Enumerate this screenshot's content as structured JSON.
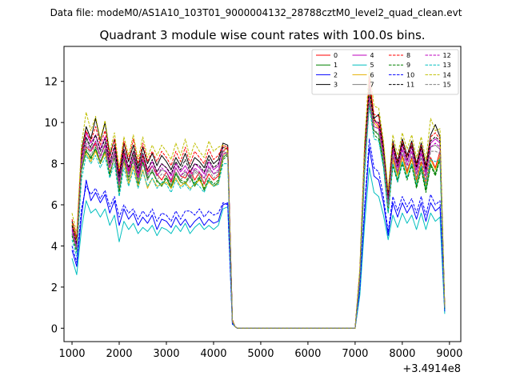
{
  "suptitle": "Data file: modeM0/AS1A10_103T01_9000004132_28788cztM0_level2_quad_clean.evt",
  "chart_data": {
    "type": "line",
    "title": "Quadrant 3 module wise count rates with 100.0s bins.",
    "xlabel": "",
    "ylabel": "",
    "x_offset_label": "+3.4914e8",
    "xlim": [
      830,
      9240
    ],
    "ylim": [
      -0.65,
      13.7
    ],
    "xticks": [
      1000,
      2000,
      3000,
      4000,
      5000,
      6000,
      7000,
      8000,
      9000
    ],
    "yticks": [
      0,
      2,
      4,
      6,
      8,
      10,
      12
    ],
    "grid": false,
    "legend": {
      "placement": "top-right",
      "columns": 4
    },
    "x": [
      1000,
      1100,
      1200,
      1300,
      1400,
      1500,
      1600,
      1700,
      1800,
      1900,
      2000,
      2100,
      2200,
      2300,
      2400,
      2500,
      2600,
      2700,
      2800,
      2900,
      3000,
      3100,
      3200,
      3300,
      3400,
      3500,
      3600,
      3700,
      3800,
      3900,
      4000,
      4100,
      4200,
      4300,
      4400,
      4450,
      4500,
      4600,
      5000,
      6000,
      7000,
      7100,
      7200,
      7300,
      7400,
      7500,
      7600,
      7700,
      7800,
      7900,
      8000,
      8100,
      8200,
      8300,
      8400,
      8500,
      8600,
      8700,
      8800,
      8900
    ],
    "series": [
      {
        "name": "0",
        "color": "#ff0000",
        "dash": false,
        "values": [
          5.0,
          4.0,
          8.0,
          8.8,
          8.6,
          9.0,
          8.4,
          8.9,
          7.8,
          8.6,
          7.0,
          8.5,
          7.6,
          8.6,
          7.4,
          8.4,
          7.6,
          7.9,
          7.5,
          7.2,
          7.6,
          7.1,
          7.8,
          7.4,
          7.3,
          7.7,
          7.2,
          7.6,
          7.0,
          7.5,
          7.2,
          7.4,
          8.6,
          8.8,
          0.3,
          0.1,
          0.0,
          0.0,
          0.0,
          0.0,
          0.0,
          2.5,
          8.0,
          12.3,
          10.2,
          9.8,
          8.4,
          6.0,
          8.3,
          7.5,
          8.4,
          7.6,
          8.3,
          7.2,
          8.1,
          7.0,
          8.3,
          7.8,
          8.6,
          1.0
        ]
      },
      {
        "name": "1",
        "color": "#008000",
        "dash": false,
        "values": [
          4.6,
          3.8,
          7.7,
          8.6,
          8.3,
          8.7,
          8.1,
          8.6,
          7.5,
          8.3,
          6.7,
          8.2,
          7.3,
          8.3,
          7.1,
          8.1,
          7.3,
          7.6,
          7.2,
          6.9,
          7.3,
          6.8,
          7.5,
          7.1,
          7.0,
          7.4,
          6.9,
          7.3,
          6.7,
          7.2,
          6.9,
          7.1,
          8.3,
          8.5,
          0.3,
          0.1,
          0.0,
          0.0,
          0.0,
          0.0,
          0.0,
          2.4,
          7.7,
          11.2,
          9.6,
          9.4,
          8.1,
          5.7,
          8.0,
          7.2,
          8.1,
          7.3,
          8.0,
          6.9,
          7.8,
          6.7,
          8.0,
          7.5,
          8.3,
          0.9
        ]
      },
      {
        "name": "2",
        "color": "#0000ff",
        "dash": false,
        "values": [
          3.8,
          3.0,
          5.4,
          7.2,
          6.2,
          6.6,
          6.1,
          6.5,
          5.6,
          6.2,
          5.0,
          5.8,
          5.3,
          5.6,
          5.0,
          5.4,
          5.1,
          5.5,
          4.8,
          5.3,
          5.2,
          4.9,
          5.4,
          5.0,
          5.3,
          4.9,
          5.2,
          5.4,
          5.0,
          5.3,
          5.1,
          5.2,
          6.0,
          6.1,
          0.2,
          0.1,
          0.0,
          0.0,
          0.0,
          0.0,
          0.0,
          1.8,
          5.6,
          8.8,
          7.4,
          7.2,
          6.1,
          4.5,
          6.1,
          5.4,
          6.1,
          5.6,
          6.0,
          5.3,
          6.1,
          5.2,
          6.1,
          5.7,
          5.9,
          0.8
        ]
      },
      {
        "name": "3",
        "color": "#000000",
        "dash": false,
        "values": [
          5.2,
          4.3,
          8.6,
          9.8,
          9.2,
          10.2,
          9.1,
          10.0,
          8.4,
          9.2,
          7.4,
          9.0,
          8.1,
          8.9,
          7.8,
          8.8,
          8.0,
          8.5,
          7.9,
          8.4,
          8.1,
          7.7,
          8.3,
          7.9,
          8.5,
          7.8,
          8.3,
          8.1,
          7.8,
          8.4,
          8.0,
          8.2,
          9.0,
          8.9,
          0.4,
          0.1,
          0.0,
          0.0,
          0.0,
          0.0,
          0.0,
          2.8,
          8.8,
          11.8,
          10.2,
          10.4,
          8.9,
          6.5,
          9.1,
          8.1,
          9.2,
          8.4,
          9.1,
          8.0,
          9.0,
          7.9,
          9.4,
          9.9,
          9.3,
          1.0
        ]
      },
      {
        "name": "4",
        "color": "#bf00bf",
        "dash": false,
        "values": [
          4.9,
          4.0,
          8.2,
          9.5,
          9.0,
          9.4,
          8.7,
          9.3,
          8.1,
          8.8,
          7.2,
          8.7,
          7.7,
          8.6,
          7.5,
          8.5,
          7.7,
          8.1,
          7.6,
          8.0,
          7.8,
          7.4,
          8.0,
          7.6,
          7.9,
          7.5,
          8.0,
          7.8,
          7.5,
          8.1,
          7.7,
          7.9,
          8.8,
          8.7,
          0.4,
          0.1,
          0.0,
          0.0,
          0.0,
          0.0,
          0.0,
          2.6,
          8.4,
          11.5,
          10.0,
          10.0,
          8.6,
          6.2,
          8.8,
          7.8,
          8.9,
          8.1,
          8.8,
          7.7,
          8.7,
          7.6,
          9.0,
          9.2,
          9.0,
          1.0
        ]
      },
      {
        "name": "5",
        "color": "#00bfbf",
        "dash": false,
        "values": [
          3.4,
          2.6,
          4.8,
          6.2,
          5.6,
          5.8,
          5.4,
          5.8,
          5.0,
          5.5,
          4.2,
          5.2,
          4.8,
          5.1,
          4.6,
          4.9,
          4.7,
          5.0,
          4.5,
          4.9,
          4.8,
          4.6,
          5.0,
          4.7,
          5.1,
          4.6,
          4.9,
          5.1,
          4.8,
          5.0,
          4.8,
          5.0,
          5.8,
          5.9,
          0.2,
          0.1,
          0.0,
          0.0,
          0.0,
          0.0,
          0.0,
          1.6,
          5.0,
          7.8,
          6.6,
          6.4,
          5.5,
          4.3,
          5.5,
          4.9,
          5.6,
          5.1,
          5.5,
          4.8,
          5.6,
          4.8,
          5.6,
          5.2,
          5.4,
          0.7
        ]
      },
      {
        "name": "6",
        "color": "#e6b000",
        "dash": false,
        "values": [
          5.1,
          4.2,
          8.0,
          8.5,
          8.1,
          8.6,
          8.0,
          8.5,
          7.6,
          8.3,
          6.9,
          8.1,
          7.0,
          7.9,
          6.9,
          7.7,
          6.8,
          7.3,
          6.9,
          7.0,
          7.1,
          6.8,
          7.3,
          6.9,
          7.1,
          6.8,
          7.0,
          7.2,
          6.8,
          7.1,
          6.9,
          7.0,
          8.4,
          8.6,
          0.3,
          0.1,
          0.0,
          0.0,
          0.0,
          0.0,
          0.0,
          2.5,
          7.9,
          11.6,
          10.0,
          9.7,
          8.3,
          5.9,
          8.2,
          7.4,
          8.3,
          7.5,
          8.2,
          7.1,
          8.0,
          6.9,
          8.2,
          7.7,
          8.4,
          1.0
        ]
      },
      {
        "name": "7",
        "color": "#808080",
        "dash": false,
        "values": [
          4.7,
          3.9,
          7.9,
          9.2,
          8.7,
          9.1,
          8.4,
          9.0,
          7.9,
          8.6,
          7.0,
          8.4,
          7.5,
          8.3,
          7.3,
          8.2,
          7.4,
          7.9,
          7.4,
          7.7,
          7.6,
          7.2,
          7.8,
          7.4,
          7.6,
          7.3,
          7.7,
          7.5,
          7.3,
          7.8,
          7.5,
          7.6,
          8.6,
          8.5,
          0.3,
          0.1,
          0.0,
          0.0,
          0.0,
          0.0,
          0.0,
          2.5,
          8.2,
          11.3,
          9.8,
          9.7,
          8.4,
          6.0,
          8.6,
          7.6,
          8.7,
          7.9,
          8.6,
          7.5,
          8.5,
          7.4,
          8.8,
          8.9,
          8.7,
          1.0
        ]
      },
      {
        "name": "8",
        "color": "#ff0000",
        "dash": true,
        "values": [
          5.3,
          4.4,
          8.5,
          9.6,
          9.1,
          9.8,
          8.9,
          9.6,
          8.3,
          9.2,
          7.6,
          9.1,
          8.2,
          9.2,
          8.0,
          9.0,
          8.1,
          8.6,
          8.1,
          8.6,
          8.3,
          7.9,
          8.6,
          8.1,
          8.8,
          8.0,
          8.6,
          8.3,
          8.0,
          8.7,
          8.2,
          8.4,
          8.9,
          8.8,
          0.4,
          0.1,
          0.0,
          0.0,
          0.0,
          0.0,
          0.0,
          2.7,
          8.6,
          12.0,
          10.4,
          10.3,
          8.8,
          6.4,
          9.0,
          8.0,
          9.1,
          8.3,
          9.0,
          7.9,
          8.9,
          7.8,
          9.3,
          9.5,
          9.2,
          1.0
        ]
      },
      {
        "name": "9",
        "color": "#008000",
        "dash": true,
        "values": [
          4.5,
          3.7,
          7.6,
          8.7,
          8.2,
          8.8,
          8.0,
          8.7,
          7.4,
          8.4,
          6.5,
          8.3,
          7.2,
          8.4,
          7.0,
          8.2,
          7.2,
          7.7,
          7.1,
          7.0,
          7.4,
          6.9,
          7.6,
          7.2,
          7.1,
          7.5,
          7.0,
          7.4,
          6.8,
          7.3,
          7.0,
          7.2,
          8.2,
          8.4,
          0.3,
          0.1,
          0.0,
          0.0,
          0.0,
          0.0,
          0.0,
          2.3,
          7.6,
          11.0,
          9.4,
          9.2,
          7.9,
          5.6,
          7.9,
          7.1,
          8.0,
          7.2,
          7.9,
          6.8,
          7.7,
          6.6,
          7.9,
          7.4,
          8.2,
          0.9
        ]
      },
      {
        "name": "10",
        "color": "#0000ff",
        "dash": true,
        "values": [
          4.0,
          3.2,
          5.8,
          6.9,
          6.5,
          6.8,
          6.3,
          6.7,
          5.9,
          6.4,
          5.4,
          6.0,
          5.6,
          5.8,
          5.3,
          5.7,
          5.4,
          5.8,
          5.2,
          5.6,
          5.5,
          5.2,
          5.7,
          5.3,
          5.7,
          5.7,
          5.5,
          5.8,
          5.4,
          5.7,
          5.5,
          5.6,
          6.1,
          6.0,
          0.2,
          0.1,
          0.0,
          0.0,
          0.0,
          0.0,
          0.0,
          1.9,
          5.9,
          9.2,
          7.8,
          7.6,
          6.4,
          4.7,
          6.4,
          5.7,
          6.4,
          5.9,
          6.3,
          5.6,
          6.4,
          5.5,
          6.5,
          6.0,
          6.2,
          0.8
        ]
      },
      {
        "name": "11",
        "color": "#000000",
        "dash": true,
        "values": [
          5.0,
          4.1,
          8.3,
          9.3,
          8.8,
          9.4,
          8.6,
          9.2,
          8.0,
          8.9,
          7.1,
          8.7,
          7.8,
          8.6,
          7.6,
          8.5,
          7.7,
          8.2,
          7.6,
          8.0,
          7.8,
          7.5,
          8.1,
          7.7,
          8.2,
          7.6,
          8.0,
          7.9,
          7.6,
          8.2,
          7.8,
          8.0,
          8.8,
          8.7,
          0.4,
          0.1,
          0.0,
          0.0,
          0.0,
          0.0,
          0.0,
          2.6,
          8.5,
          11.6,
          10.1,
          10.0,
          8.7,
          6.3,
          8.9,
          7.9,
          9.0,
          8.2,
          8.9,
          7.8,
          8.8,
          7.7,
          9.1,
          9.3,
          9.1,
          1.0
        ]
      },
      {
        "name": "12",
        "color": "#bf00bf",
        "dash": true,
        "values": [
          4.8,
          3.9,
          8.1,
          9.0,
          8.6,
          9.1,
          8.3,
          8.9,
          7.8,
          8.5,
          7.0,
          8.4,
          7.5,
          8.3,
          7.3,
          8.2,
          7.5,
          7.9,
          7.4,
          7.8,
          7.6,
          7.2,
          7.8,
          7.4,
          7.7,
          7.3,
          7.8,
          7.6,
          7.3,
          7.9,
          7.5,
          7.7,
          8.5,
          8.5,
          0.3,
          0.1,
          0.0,
          0.0,
          0.0,
          0.0,
          0.0,
          2.5,
          8.2,
          11.2,
          9.8,
          9.7,
          8.4,
          6.1,
          8.6,
          7.6,
          8.7,
          7.9,
          8.6,
          7.5,
          8.5,
          7.4,
          8.8,
          9.0,
          8.8,
          1.0
        ]
      },
      {
        "name": "13",
        "color": "#00bfbf",
        "dash": true,
        "values": [
          4.3,
          3.5,
          7.2,
          8.4,
          8.0,
          8.4,
          7.8,
          8.3,
          7.3,
          8.0,
          6.4,
          7.8,
          6.9,
          7.7,
          6.8,
          7.6,
          6.9,
          7.3,
          6.8,
          7.1,
          7.0,
          6.6,
          7.2,
          6.8,
          7.0,
          6.7,
          7.1,
          6.9,
          6.6,
          7.2,
          6.9,
          7.0,
          8.0,
          8.0,
          0.3,
          0.1,
          0.0,
          0.0,
          0.0,
          0.0,
          0.0,
          2.3,
          7.5,
          10.8,
          9.2,
          9.1,
          7.8,
          5.6,
          8.0,
          7.1,
          8.1,
          7.3,
          8.0,
          7.0,
          7.9,
          6.9,
          8.2,
          8.1,
          8.2,
          0.9
        ]
      },
      {
        "name": "14",
        "color": "#bfbf00",
        "dash": true,
        "values": [
          5.6,
          4.6,
          8.9,
          10.5,
          9.6,
          10.3,
          9.2,
          10.1,
          8.6,
          9.5,
          7.8,
          9.3,
          8.4,
          9.4,
          8.2,
          9.3,
          8.3,
          8.9,
          8.4,
          8.9,
          8.6,
          8.2,
          9.0,
          8.4,
          9.2,
          8.3,
          9.0,
          8.6,
          8.3,
          9.1,
          8.6,
          8.8,
          8.9,
          8.6,
          0.4,
          0.1,
          0.0,
          0.0,
          0.0,
          0.0,
          0.0,
          2.9,
          9.0,
          12.7,
          10.8,
          10.7,
          9.1,
          6.7,
          9.4,
          8.4,
          9.5,
          8.7,
          9.4,
          8.3,
          9.3,
          8.2,
          10.2,
          9.6,
          9.7,
          1.1
        ]
      },
      {
        "name": "15",
        "color": "#808080",
        "dash": true,
        "values": [
          4.6,
          3.8,
          7.8,
          8.9,
          8.4,
          8.9,
          8.1,
          8.7,
          7.6,
          8.3,
          6.8,
          8.2,
          7.3,
          8.1,
          7.1,
          8.0,
          7.2,
          7.7,
          7.2,
          7.5,
          7.4,
          7.0,
          7.6,
          7.2,
          7.5,
          7.1,
          7.6,
          7.4,
          7.1,
          7.7,
          7.3,
          7.5,
          8.4,
          8.4,
          0.3,
          0.1,
          0.0,
          0.0,
          0.0,
          0.0,
          0.0,
          2.4,
          8.0,
          11.0,
          9.6,
          9.5,
          8.2,
          5.9,
          8.4,
          7.5,
          8.5,
          7.7,
          8.4,
          7.3,
          8.3,
          7.2,
          8.6,
          8.6,
          8.5,
          1.0
        ]
      }
    ]
  }
}
